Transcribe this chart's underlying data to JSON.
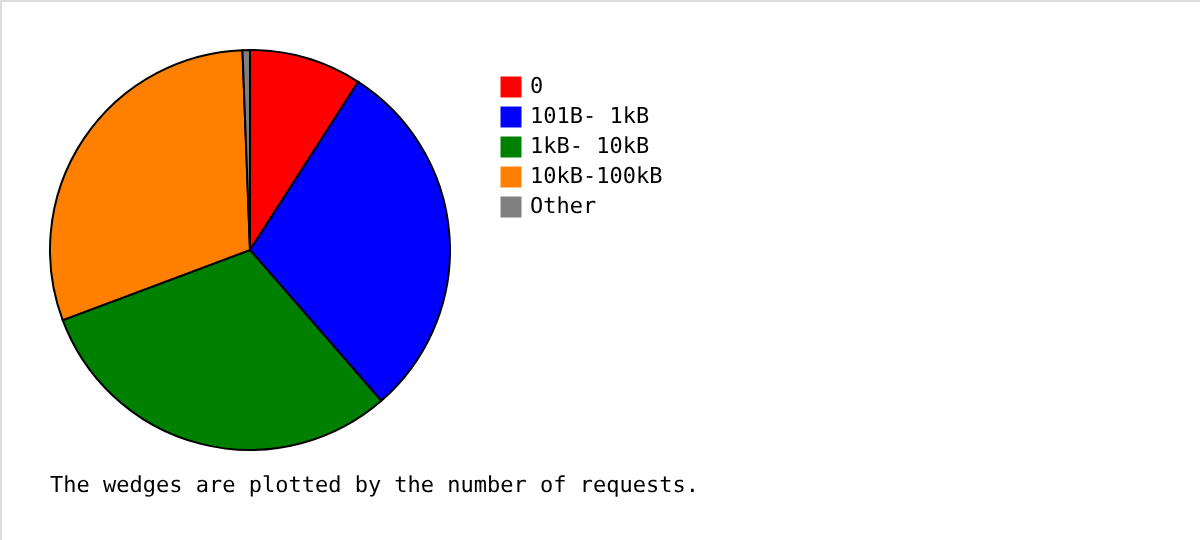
{
  "chart_data": {
    "type": "pie",
    "categories": [
      "0",
      "101B-  1kB",
      "1kB- 10kB",
      "10kB-100kB",
      "Other"
    ],
    "values": [
      9.1,
      29.5,
      30.7,
      30.1,
      0.6
    ],
    "colors": [
      "#ff0000",
      "#0000ff",
      "#008000",
      "#ff8000",
      "#808080"
    ],
    "legend": "right",
    "annotations": [
      "The wedges are plotted by the number of requests."
    ]
  }
}
